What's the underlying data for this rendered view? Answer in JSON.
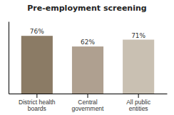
{
  "chart_data": {
    "type": "bar",
    "title": "Pre-employment screening",
    "categories": [
      "District health\nboards",
      "Central\ngovernment",
      "All public\nentities"
    ],
    "values": [
      76,
      62,
      71
    ],
    "value_labels": [
      "76%",
      "62%",
      "71%"
    ],
    "data_labels": true,
    "colors": [
      "#8B7B65",
      "#AFA090",
      "#C9C0B2"
    ],
    "ylim": [
      0,
      95
    ],
    "tick_labels": "x",
    "grid": false
  }
}
